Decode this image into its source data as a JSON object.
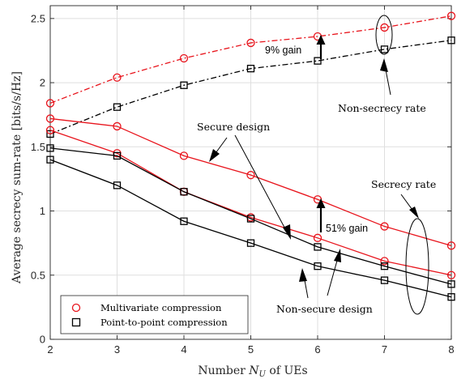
{
  "chart_data": {
    "type": "line",
    "xlabel": "Number N_U of UEs",
    "xlabel_main": "Number ",
    "xlabel_sym": "N",
    "xlabel_sub": "U",
    "xlabel_rest": " of UEs",
    "ylabel": "Average secrecy sum-rate [bits/s/Hz]",
    "xlim": [
      2,
      8
    ],
    "ylim": [
      0,
      2.6
    ],
    "x_ticks": [
      2,
      3,
      4,
      5,
      6,
      7,
      8
    ],
    "x_tick_labels": [
      "2",
      "3",
      "4",
      "5",
      "6",
      "7",
      "8"
    ],
    "y_ticks": [
      0,
      0.5,
      1,
      1.5,
      2,
      2.5
    ],
    "y_tick_labels": [
      "0",
      "0.5",
      "1",
      "1.5",
      "2",
      "2.5"
    ],
    "grid": true,
    "legend_position": "bottom-left",
    "colors": {
      "red": "#e8141c",
      "black": "#000000",
      "grid": "#dfdfdf",
      "axis": "#262626"
    },
    "x": [
      2,
      3,
      4,
      5,
      6,
      7,
      8
    ],
    "series": [
      {
        "legend_group": "multivariate",
        "color": "#e8141c",
        "marker": "circle",
        "dash": "dashdot",
        "values": [
          1.84,
          2.04,
          2.19,
          2.31,
          2.36,
          2.43,
          2.52
        ]
      },
      {
        "legend_group": "point",
        "color": "#000000",
        "marker": "square",
        "dash": "dashdot",
        "values": [
          1.6,
          1.81,
          1.98,
          2.11,
          2.17,
          2.26,
          2.33
        ]
      },
      {
        "legend_group": "multivariate",
        "color": "#e8141c",
        "marker": "circle",
        "dash": "solid",
        "values": [
          1.72,
          1.66,
          1.43,
          1.28,
          1.09,
          0.88,
          0.73
        ]
      },
      {
        "legend_group": "multivariate",
        "color": "#e8141c",
        "marker": "circle",
        "dash": "solid",
        "values": [
          1.63,
          1.45,
          1.15,
          0.95,
          0.79,
          0.61,
          0.5
        ]
      },
      {
        "legend_group": "point",
        "color": "#000000",
        "marker": "square",
        "dash": "solid",
        "values": [
          1.49,
          1.43,
          1.15,
          0.94,
          0.72,
          0.57,
          0.43
        ]
      },
      {
        "legend_group": "point",
        "color": "#000000",
        "marker": "square",
        "dash": "solid",
        "values": [
          1.4,
          1.2,
          0.92,
          0.75,
          0.57,
          0.46,
          0.33
        ]
      }
    ],
    "legend": [
      {
        "label": "Multivariate compression",
        "color": "#e8141c",
        "marker": "circle"
      },
      {
        "label": "Point-to-point compression",
        "color": "#000000",
        "marker": "square"
      }
    ],
    "annotations": {
      "gain_9": "9% gain",
      "gain_51": "51% gain",
      "non_secrecy_rate": "Non-secrecy rate",
      "secure_design": "Secure design",
      "secrecy_rate": "Secrecy rate",
      "non_secure_design": "Non-secure design"
    }
  }
}
